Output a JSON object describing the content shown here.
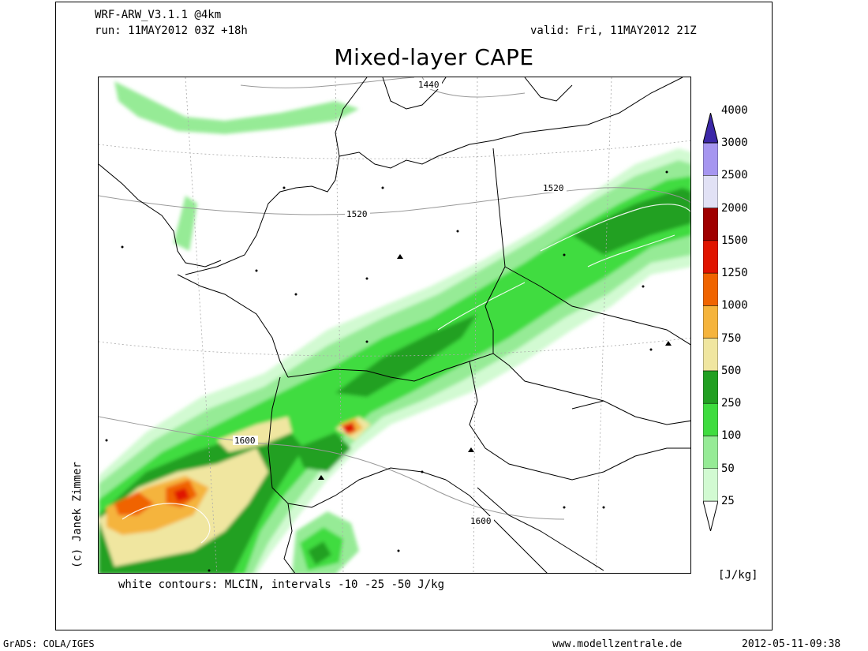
{
  "header": {
    "model": "WRF-ARW_V3.1.1 @4km",
    "run": "run: 11MAY2012 03Z +18h",
    "valid": "valid: Fri, 11MAY2012 21Z"
  },
  "title": "Mixed-layer CAPE",
  "contour_note": "white contours: MLCIN, intervals -10 -25 -50 J/kg",
  "copyright": "(c) Janek Zimmer",
  "legend": {
    "unit": "[J/kg]",
    "levels": [
      "25",
      "50",
      "100",
      "250",
      "500",
      "750",
      "1000",
      "1250",
      "1500",
      "2000",
      "2500",
      "3000",
      "4000"
    ],
    "colors": [
      "#d2fad2",
      "#96eb96",
      "#3fdc3f",
      "#22a022",
      "#f0e6a0",
      "#f5b43c",
      "#f06400",
      "#e01400",
      "#a00000",
      "#e1e1f5",
      "#a696f0",
      "#6c5cd8",
      "#3c28a8"
    ]
  },
  "height_labels": [
    "1440",
    "1520",
    "1520",
    "1600",
    "1600"
  ],
  "footer": {
    "left": "GrADS: COLA/IGES",
    "center": "www.modellzentrale.de",
    "right": "2012-05-11-09:38"
  },
  "colors": {
    "cape_low": "#d2fad2",
    "cape_50": "#96eb96",
    "cape_100": "#3fdc3f",
    "cape_250": "#22a022",
    "cape_500": "#f0e6a0",
    "cape_750": "#f5b43c",
    "cape_1000": "#f06400",
    "cape_1250": "#e01400",
    "cape_1500": "#a00000"
  }
}
